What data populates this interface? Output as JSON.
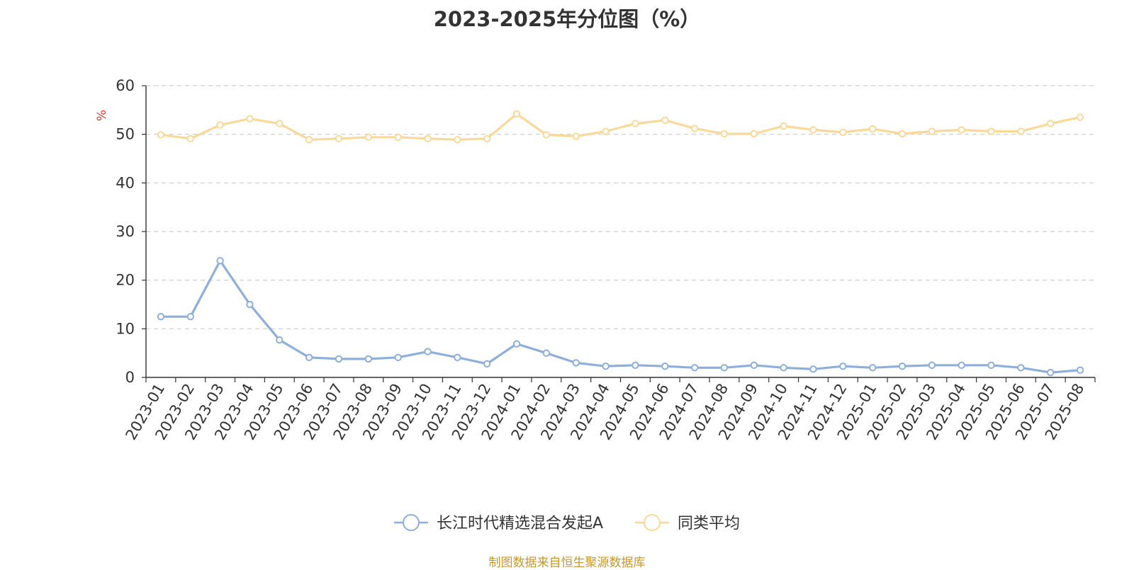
{
  "chart_data": {
    "type": "line",
    "title": "2023-2025年分位图（%）",
    "ylabel": "%",
    "xlabel": "",
    "ylim": [
      0,
      60
    ],
    "yticks": [
      0,
      10,
      20,
      30,
      40,
      50,
      60
    ],
    "grid": true,
    "legend_position": "bottom-center",
    "categories": [
      "2023-01",
      "2023-02",
      "2023-03",
      "2023-04",
      "2023-05",
      "2023-06",
      "2023-07",
      "2023-08",
      "2023-09",
      "2023-10",
      "2023-11",
      "2023-12",
      "2024-01",
      "2024-02",
      "2024-03",
      "2024-04",
      "2024-05",
      "2024-06",
      "2024-07",
      "2024-08",
      "2024-09",
      "2024-10",
      "2024-11",
      "2024-12",
      "2025-01",
      "2025-02",
      "2025-03",
      "2025-04",
      "2025-05",
      "2025-06",
      "2025-07",
      "2025-08"
    ],
    "series": [
      {
        "name": "长江时代精选混合发起A",
        "color": "#8eaedb",
        "values": [
          12.5,
          12.5,
          24,
          15,
          7.7,
          4.1,
          3.8,
          3.8,
          4.1,
          5.3,
          4.1,
          2.8,
          6.9,
          5.0,
          3.0,
          2.3,
          2.5,
          2.3,
          2.0,
          2.0,
          2.5,
          2.0,
          1.7,
          2.3,
          2.0,
          2.3,
          2.5,
          2.5,
          2.5,
          2.0,
          1.0,
          1.5
        ]
      },
      {
        "name": "同类平均",
        "color": "#f8d99a",
        "values": [
          49.9,
          49.1,
          51.9,
          53.2,
          52.2,
          48.9,
          49.1,
          49.4,
          49.4,
          49.1,
          48.9,
          49.1,
          54.2,
          49.9,
          49.6,
          50.6,
          52.2,
          52.9,
          51.2,
          50.1,
          50.1,
          51.7,
          50.9,
          50.4,
          51.1,
          50.1,
          50.6,
          50.9,
          50.6,
          50.6,
          52.2,
          53.5
        ]
      }
    ]
  },
  "source_note": "制图数据来自恒生聚源数据库"
}
